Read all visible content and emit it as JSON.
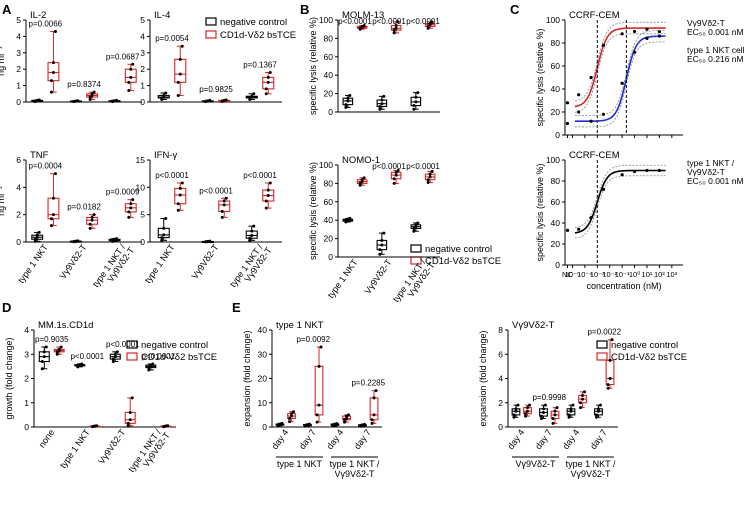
{
  "colors": {
    "control": "#000000",
    "tce": "#d62728",
    "blue": "#1f2fd6",
    "ci": "#888888",
    "grid": "#000000"
  },
  "panels": [
    {
      "key": "A",
      "label": "A"
    },
    {
      "key": "B",
      "label": "B"
    },
    {
      "key": "C",
      "label": "C"
    },
    {
      "key": "D",
      "label": "D"
    },
    {
      "key": "E",
      "label": "E"
    }
  ],
  "legend": {
    "control": "negative control",
    "tce": "CD1d-Vδ2 bsTCE"
  },
  "chart_data": [
    {
      "id": "A1",
      "type": "box",
      "title": "IL-2",
      "ylabel": "ng ml⁻¹",
      "ylim": [
        0,
        5
      ],
      "yticks": [
        "0",
        "1",
        "2",
        "3",
        "4",
        "5"
      ],
      "categories": [
        "type 1 NKT",
        "Vγ9Vδ2-T",
        "type 1 NKT / Vγ9Vδ2-T"
      ],
      "show_xlabels": false,
      "series": [
        {
          "name": "negative control",
          "points": [
            [
              0.02,
              0.05,
              0.08,
              0.1,
              0.12
            ],
            [
              0.02,
              0.04,
              0.05,
              0.06,
              0.08
            ],
            [
              0.02,
              0.05,
              0.06,
              0.08,
              0.1
            ]
          ]
        },
        {
          "name": "CD1d-Vδ2 bsTCE",
          "points": [
            [
              0.6,
              1.3,
              1.8,
              2.4,
              4.3
            ],
            [
              0.15,
              0.3,
              0.4,
              0.5,
              0.6
            ],
            [
              0.7,
              1.2,
              1.5,
              2.0,
              2.3
            ]
          ]
        }
      ],
      "pvalues": [
        "p=0.0066",
        "p=0.8374",
        "p=0.0687"
      ]
    },
    {
      "id": "A2",
      "type": "box",
      "title": "IL-4",
      "ylabel": "",
      "ylim": [
        0,
        5
      ],
      "yticks": [
        "0",
        "1",
        "2",
        "3",
        "4",
        "5"
      ],
      "categories": [
        "type 1 NKT",
        "Vγ9Vδ2-T",
        "type 1 NKT / Vγ9Vδ2-T"
      ],
      "show_xlabels": false,
      "series": [
        {
          "name": "negative control",
          "points": [
            [
              0.15,
              0.25,
              0.3,
              0.4,
              0.55
            ],
            [
              0.02,
              0.04,
              0.05,
              0.07,
              0.1
            ],
            [
              0.15,
              0.25,
              0.3,
              0.35,
              0.5
            ]
          ]
        },
        {
          "name": "CD1d-Vδ2 bsTCE",
          "points": [
            [
              0.4,
              1.2,
              1.7,
              2.6,
              3.4
            ],
            [
              0.03,
              0.05,
              0.08,
              0.1,
              0.12
            ],
            [
              0.5,
              0.8,
              1.2,
              1.5,
              1.8
            ]
          ]
        }
      ],
      "pvalues": [
        "p=0.0054",
        "p=0.9825",
        "p=0.1367"
      ]
    },
    {
      "id": "A3",
      "type": "box",
      "title": "TNF",
      "ylabel": "ng ml⁻¹",
      "ylim": [
        0,
        6
      ],
      "yticks": [
        "0",
        "2",
        "4",
        "6"
      ],
      "categories": [
        "type 1 NKT",
        "Vγ9Vδ2-T",
        "type 1 NKT / Vγ9Vδ2-T"
      ],
      "show_xlabels": true,
      "series": [
        {
          "name": "negative control",
          "points": [
            [
              0.05,
              0.2,
              0.35,
              0.5,
              0.7
            ],
            [
              0.02,
              0.04,
              0.05,
              0.06,
              0.08
            ],
            [
              0.05,
              0.1,
              0.15,
              0.2,
              0.25
            ]
          ]
        },
        {
          "name": "CD1d-Vδ2 bsTCE",
          "points": [
            [
              1.2,
              1.7,
              2.0,
              3.2,
              5.0
            ],
            [
              1.0,
              1.3,
              1.6,
              1.8,
              2.0
            ],
            [
              1.8,
              2.2,
              2.5,
              2.8,
              3.1
            ]
          ]
        }
      ],
      "pvalues": [
        "p=0.0004",
        "p=0.0182",
        "p=0.0009"
      ]
    },
    {
      "id": "A4",
      "type": "box",
      "title": "IFN-γ",
      "ylabel": "",
      "ylim": [
        0,
        15
      ],
      "yticks": [
        "0",
        "5",
        "10",
        "15"
      ],
      "categories": [
        "type 1 NKT",
        "Vγ9Vδ2-T",
        "type 1 NKT / Vγ9Vδ2-T"
      ],
      "show_xlabels": true,
      "series": [
        {
          "name": "negative control",
          "points": [
            [
              0.3,
              0.8,
              1.3,
              2.5,
              4.3
            ],
            [
              0.02,
              0.05,
              0.08,
              0.1,
              0.15
            ],
            [
              0.3,
              0.7,
              1.2,
              2.0,
              2.9
            ]
          ]
        },
        {
          "name": "CD1d-Vδ2 bsTCE",
          "points": [
            [
              5.8,
              7.0,
              8.6,
              9.8,
              10.8
            ],
            [
              4.5,
              5.6,
              6.8,
              7.5,
              8.0
            ],
            [
              6.2,
              7.5,
              8.5,
              9.5,
              10.8
            ]
          ]
        }
      ],
      "pvalues": [
        "p<0.0001",
        "p<0.0001",
        "p<0.0001"
      ]
    },
    {
      "id": "B1",
      "type": "box",
      "title": "MOLM-13",
      "ylabel": "specific lysis (relative %)",
      "ylim": [
        0,
        100
      ],
      "yticks": [
        "0",
        "20",
        "40",
        "60",
        "80",
        "100"
      ],
      "categories": [
        "type 1 NKT",
        "Vγ9Vδ2-T",
        "type 1 NKT / Vγ9Vδ2-T"
      ],
      "show_xlabels": false,
      "series": [
        {
          "name": "negative control",
          "points": [
            [
              5,
              8,
              12,
              15,
              18
            ],
            [
              3,
              6,
              9,
              13,
              17
            ],
            [
              3,
              7,
              11,
              16,
              21
            ]
          ]
        },
        {
          "name": "CD1d-Vδ2 bsTCE",
          "points": [
            [
              90,
              91,
              92,
              93,
              94
            ],
            [
              86,
              89,
              91,
              94,
              98
            ],
            [
              91,
              93,
              95,
              96,
              98
            ]
          ]
        }
      ],
      "pvalues": [
        "p<0.0001",
        "p<0.0001",
        "p<0.0001"
      ]
    },
    {
      "id": "B2",
      "type": "box",
      "title": "NOMO-1",
      "ylabel": "specific lysis (relative %)",
      "ylim": [
        0,
        100
      ],
      "yticks": [
        "0",
        "20",
        "40",
        "60",
        "80",
        "100"
      ],
      "categories": [
        "type 1 NKT",
        "Vγ9Vδ2-T",
        "type 1 NKT / Vγ9Vδ2-T"
      ],
      "show_xlabels": true,
      "series": [
        {
          "name": "negative control",
          "points": [
            [
              38,
              39,
              40,
              41,
              42
            ],
            [
              3,
              8,
              13,
              18,
              26
            ],
            [
              28,
              31,
              33,
              35,
              37
            ]
          ]
        },
        {
          "name": "CD1d-Vδ2 bsTCE",
          "points": [
            [
              78,
              80,
              82,
              84,
              86
            ],
            [
              80,
              85,
              89,
              92,
              94
            ],
            [
              81,
              84,
              87,
              90,
              93
            ]
          ]
        }
      ],
      "pvalues": [
        "",
        "p<0.0001",
        "p<0.0001"
      ]
    },
    {
      "id": "C1",
      "type": "dose_response",
      "title": "CCRF-CEM",
      "ylabel": "specific lysis (relative %)",
      "ylim": [
        0,
        100
      ],
      "yticks": [
        "0",
        "20",
        "40",
        "60",
        "80",
        "100"
      ],
      "xticks": [
        "NC",
        "10⁻⁵",
        "10⁻⁴",
        "10⁻³",
        "10⁻²",
        "10⁻¹",
        "10⁰",
        "10¹",
        "10²",
        "10³"
      ],
      "show_xlabels": false,
      "series": [
        {
          "name": "Vγ9Vδ2-T",
          "color_key": "tce",
          "bottom": 24,
          "top": 93,
          "ec50_log": -3.0,
          "hill": 1.1,
          "points": [
            [
              -4.5,
              35
            ],
            [
              -3.5,
              50
            ],
            [
              -2.5,
              78
            ],
            [
              -1,
              88
            ],
            [
              0,
              90
            ],
            [
              1,
              92
            ],
            [
              2,
              90
            ]
          ],
          "nc": 28
        },
        {
          "name": "type 1 NKT cell",
          "color_key": "blue",
          "bottom": 12,
          "top": 86,
          "ec50_log": -0.66,
          "hill": 1.1,
          "points": [
            [
              -4.5,
              20
            ],
            [
              -3.5,
              12
            ],
            [
              -2.5,
              18
            ],
            [
              -1,
              45
            ],
            [
              0,
              72
            ],
            [
              1,
              84
            ],
            [
              2,
              86
            ]
          ],
          "nc": 10
        }
      ],
      "labels": [
        {
          "text": "Vγ9Vδ2-T",
          "line2": "EC₅₀ 0.001 nM",
          "color_key": "tce"
        },
        {
          "text": "type 1 NKT cell",
          "line2": "EC₅₀ 0.216 nM",
          "color_key": "blue"
        }
      ]
    },
    {
      "id": "C2",
      "type": "dose_response",
      "title": "CCRF-CEM",
      "ylabel": "specific lysis (relative %)",
      "xlabel": "concentration (nM)",
      "ylim": [
        0,
        100
      ],
      "yticks": [
        "0",
        "20",
        "40",
        "60",
        "80",
        "100"
      ],
      "xticks": [
        "NC",
        "10⁻⁵",
        "10⁻⁴",
        "10⁻³",
        "10⁻²",
        "10⁻¹",
        "10⁰",
        "10¹",
        "10²",
        "10³"
      ],
      "show_xlabels": true,
      "series": [
        {
          "name": "type 1 NKT / Vγ9Vδ2-T",
          "color_key": "control",
          "bottom": 30,
          "top": 90,
          "ec50_log": -3.0,
          "hill": 1.1,
          "points": [
            [
              -4.5,
              34
            ],
            [
              -3.5,
              45
            ],
            [
              -2.5,
              72
            ],
            [
              -1,
              86
            ],
            [
              0,
              89
            ],
            [
              1,
              90
            ],
            [
              2,
              90
            ]
          ],
          "nc": 33
        }
      ],
      "labels": [
        {
          "text": "type 1 NKT /",
          "line2": "Vγ9Vδ2-T",
          "line3": "EC₅₀ 0.001 nM",
          "color_key": "control"
        }
      ]
    },
    {
      "id": "D1",
      "type": "box",
      "title": "MM.1s.CD1d",
      "ylabel": "growth (fold change)",
      "ylim": [
        0,
        4
      ],
      "yticks": [
        "0",
        "1",
        "2",
        "3",
        "4"
      ],
      "categories": [
        "none",
        "type 1 NKT",
        "Vγ9Vδ2-T",
        "type 1 NKT / Vγ9Vδ2-T"
      ],
      "show_xlabels": true,
      "series": [
        {
          "name": "negative control",
          "points": [
            [
              2.4,
              2.7,
              2.9,
              3.1,
              3.3
            ],
            [
              2.48,
              2.52,
              2.55,
              2.57,
              2.6
            ],
            [
              2.7,
              2.8,
              2.9,
              3.0,
              3.1
            ],
            [
              2.35,
              2.45,
              2.5,
              2.55,
              2.6
            ]
          ]
        },
        {
          "name": "CD1d-Vδ2 bsTCE",
          "points": [
            [
              3.0,
              3.1,
              3.15,
              3.2,
              3.3
            ],
            [
              0.01,
              0.02,
              0.03,
              0.04,
              0.05
            ],
            [
              0.05,
              0.15,
              0.3,
              0.6,
              1.2
            ],
            [
              0.01,
              0.02,
              0.03,
              0.04,
              0.05
            ]
          ]
        }
      ],
      "pvalues": [
        "p=0.9035",
        "p<0.0001",
        "p<0.0001",
        "p<0.0001"
      ]
    },
    {
      "id": "E1",
      "type": "box",
      "title": "type 1 NKT",
      "ylabel": "expansion (fold change)",
      "ylim": [
        0,
        40
      ],
      "yticks": [
        "0",
        "10",
        "20",
        "30",
        "40"
      ],
      "categories": [
        "day 4",
        "day 7",
        "day 4",
        "day 7"
      ],
      "show_xlabels": true,
      "groups": [
        "type 1 NKT",
        "type 1 NKT / Vγ9Vδ2-T"
      ],
      "series": [
        {
          "name": "negative control",
          "points": [
            [
              0.5,
              0.8,
              1,
              1.2,
              1.5
            ],
            [
              0.3,
              0.6,
              0.8,
              1.0,
              1.2
            ],
            [
              0.4,
              0.7,
              1,
              1.2,
              1.4
            ],
            [
              0.3,
              0.5,
              0.7,
              0.9,
              1.1
            ]
          ]
        },
        {
          "name": "CD1d-Vδ2 bsTCE",
          "points": [
            [
              2.2,
              3.5,
              4.5,
              5.5,
              6.3
            ],
            [
              2,
              5,
              9,
              25,
              33
            ],
            [
              2.0,
              3.0,
              3.5,
              4.5,
              5.0
            ],
            [
              1.5,
              3,
              5,
              12,
              15
            ]
          ]
        }
      ],
      "pvalues": [
        "",
        "p=0.0092",
        "",
        "p=0.2285"
      ]
    },
    {
      "id": "E2",
      "type": "box",
      "title": "Vγ9Vδ2-T",
      "ylabel": "expansion (fold change)",
      "ylim": [
        0,
        8
      ],
      "yticks": [
        "0",
        "2",
        "4",
        "6",
        "8"
      ],
      "categories": [
        "day 4",
        "day 7",
        "day 4",
        "day 7"
      ],
      "show_xlabels": true,
      "groups": [
        "Vγ9Vδ2-T",
        "type 1 NKT / Vγ9Vδ2-T"
      ],
      "series": [
        {
          "name": "negative control",
          "points": [
            [
              0.8,
              1.0,
              1.3,
              1.5,
              1.8
            ],
            [
              0.7,
              0.9,
              1.2,
              1.5,
              1.8
            ],
            [
              0.8,
              1.0,
              1.3,
              1.5,
              1.8
            ],
            [
              0.8,
              1.0,
              1.3,
              1.5,
              1.8
            ]
          ]
        },
        {
          "name": "CD1d-Vδ2 bsTCE",
          "points": [
            [
              0.9,
              1.1,
              1.3,
              1.6,
              1.8
            ],
            [
              0.3,
              0.7,
              1.0,
              1.3,
              1.6
            ],
            [
              1.6,
              2.0,
              2.3,
              2.6,
              2.9
            ],
            [
              3.2,
              3.5,
              4.0,
              5.5,
              7.2
            ]
          ]
        }
      ],
      "pvalues": [
        "",
        "p=0.9998",
        "",
        "p=0.0022"
      ]
    }
  ]
}
